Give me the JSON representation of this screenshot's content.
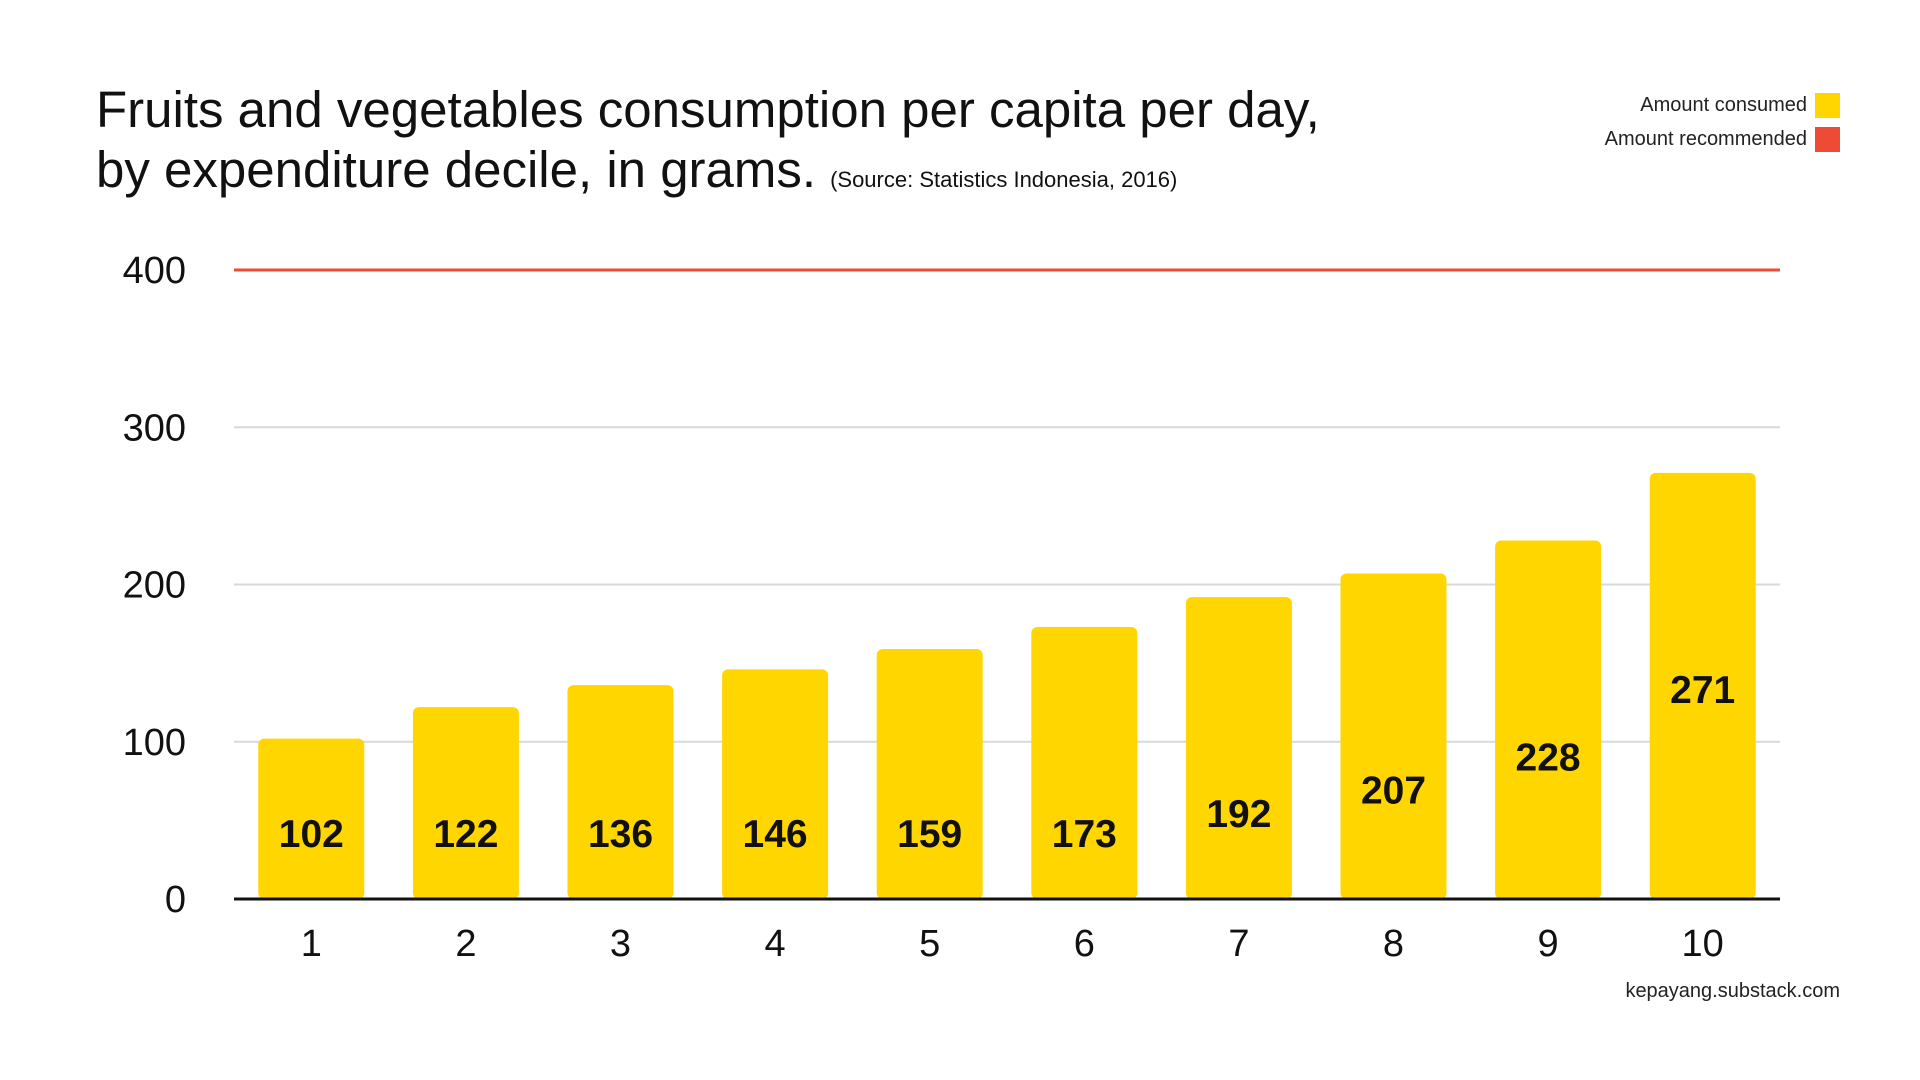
{
  "chart_data": {
    "type": "bar",
    "title_line1": "Fruits and vegetables consumption per capita per day,",
    "title_line2": "by expenditure decile, in grams.",
    "source": "(Source: Statistics Indonesia, 2016)",
    "xlabel": "",
    "ylabel": "",
    "categories": [
      "1",
      "2",
      "3",
      "4",
      "5",
      "6",
      "7",
      "8",
      "9",
      "10"
    ],
    "series": [
      {
        "name": "Amount consumed",
        "values": [
          102,
          122,
          136,
          146,
          159,
          173,
          192,
          207,
          228,
          271
        ],
        "color": "#FFD600"
      }
    ],
    "reference_line": {
      "name": "Amount recommended",
      "value": 400,
      "color": "#EE4B37"
    },
    "ylim": [
      0,
      400
    ],
    "yticks": [
      "0",
      "100",
      "200",
      "300",
      "400"
    ],
    "grid": true,
    "legend_position": "top-right"
  },
  "legend": {
    "consumed_label": "Amount consumed",
    "recommended_label": "Amount recommended"
  },
  "footer": {
    "credit": "kepayang.substack.com"
  }
}
